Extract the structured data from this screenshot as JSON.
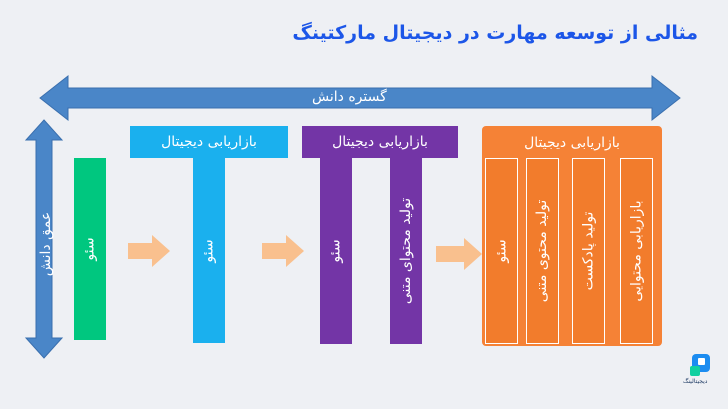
{
  "title": "مثالی از توسعه مهارت در دیجیتال مارکتینگ",
  "axes": {
    "horizontal_label": "گستره دانش",
    "vertical_label": "عمق دانش"
  },
  "stages": [
    {
      "header": "",
      "bars": [
        "سئو"
      ]
    },
    {
      "header": "بازاریابی دیجیتال",
      "bars": [
        "سئو"
      ]
    },
    {
      "header": "بازاریابی دیجیتال",
      "bars": [
        "سئو",
        "تولید محتوای متنی"
      ]
    },
    {
      "header": "بازاریابی دیجیتال",
      "bars": [
        "سئو",
        "تولید محتوی متنی",
        "تولید پادکست",
        "بازاریابی محتوایی"
      ]
    }
  ],
  "colors": {
    "title": "#1c56e8",
    "axis_arrow": "#4a86c8",
    "stage1": "#00c77f",
    "stage2": "#1ab0ee",
    "stage3": "#7335a6",
    "stage4": "#f27c2c",
    "connector_arrow": "#f9c08e"
  },
  "logo": {
    "text": "دیجیتالینگ"
  }
}
